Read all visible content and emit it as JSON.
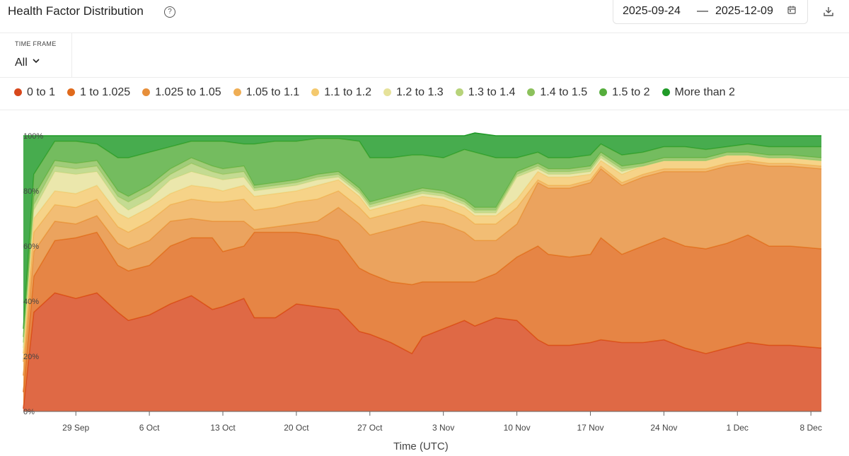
{
  "header": {
    "title": "Health Factor Distribution",
    "help_icon": "?",
    "date_start": "2025-09-24",
    "date_sep": "—",
    "date_end": "2025-12-09"
  },
  "time_frame": {
    "label": "TIME FRAME",
    "value": "All"
  },
  "colors": {
    "0 to 1": "#d8481c",
    "1 to 1.025": "#e06a1c",
    "1.025 to 1.05": "#e78f3a",
    "1.05 to 1.1": "#efae55",
    "1.1 to 1.2": "#f4c96e",
    "1.2 to 1.3": "#e6e29a",
    "1.3 to 1.4": "#b7d37a",
    "1.4 to 1.5": "#8cc15c",
    "1.5 to 2": "#55ad3c",
    "More than 2": "#1f9a27"
  },
  "chart_data": {
    "type": "area",
    "stacked": true,
    "x_is_date": true,
    "date_range": [
      "2025-09-24",
      "2025-12-09"
    ],
    "xlabel": "Time (UTC)",
    "ylabel": "",
    "ylim": [
      0,
      100
    ],
    "yticks": [
      "0%",
      "20%",
      "40%",
      "60%",
      "80%",
      "100%"
    ],
    "xticks": [
      {
        "date": "2025-09-29",
        "label": "29 Sep"
      },
      {
        "date": "2025-10-06",
        "label": "6 Oct"
      },
      {
        "date": "2025-10-13",
        "label": "13 Oct"
      },
      {
        "date": "2025-10-20",
        "label": "20 Oct"
      },
      {
        "date": "2025-10-27",
        "label": "27 Oct"
      },
      {
        "date": "2025-11-03",
        "label": "3 Nov"
      },
      {
        "date": "2025-11-10",
        "label": "10 Nov"
      },
      {
        "date": "2025-11-17",
        "label": "17 Nov"
      },
      {
        "date": "2025-11-24",
        "label": "24 Nov"
      },
      {
        "date": "2025-12-01",
        "label": "1 Dec"
      },
      {
        "date": "2025-12-08",
        "label": "8 Dec"
      }
    ],
    "x": [
      "2025-09-24",
      "2025-09-25",
      "2025-09-27",
      "2025-09-29",
      "2025-10-01",
      "2025-10-03",
      "2025-10-04",
      "2025-10-06",
      "2025-10-08",
      "2025-10-10",
      "2025-10-12",
      "2025-10-13",
      "2025-10-15",
      "2025-10-16",
      "2025-10-18",
      "2025-10-20",
      "2025-10-22",
      "2025-10-24",
      "2025-10-26",
      "2025-10-27",
      "2025-10-29",
      "2025-10-31",
      "2025-11-01",
      "2025-11-03",
      "2025-11-05",
      "2025-11-06",
      "2025-11-08",
      "2025-11-10",
      "2025-11-12",
      "2025-11-13",
      "2025-11-15",
      "2025-11-17",
      "2025-11-18",
      "2025-11-20",
      "2025-11-22",
      "2025-11-24",
      "2025-11-26",
      "2025-11-28",
      "2025-11-30",
      "2025-12-02",
      "2025-12-04",
      "2025-12-06",
      "2025-12-09"
    ],
    "series": [
      {
        "name": "0 to 1",
        "values": [
          1,
          36,
          43,
          41,
          43,
          36,
          33,
          35,
          39,
          42,
          37,
          38,
          41,
          34,
          34,
          39,
          38,
          37,
          29,
          28,
          25,
          21,
          27,
          30,
          33,
          31,
          34,
          33,
          26,
          24,
          24,
          25,
          26,
          25,
          25,
          26,
          23,
          21,
          23,
          25,
          24,
          24,
          23
        ]
      },
      {
        "name": "1 to 1.025",
        "values": [
          6,
          13,
          19,
          22,
          22,
          17,
          18,
          18,
          21,
          21,
          26,
          20,
          19,
          31,
          31,
          26,
          26,
          25,
          23,
          22,
          22,
          25,
          20,
          17,
          14,
          16,
          16,
          23,
          34,
          33,
          32,
          32,
          37,
          32,
          35,
          37,
          37,
          38,
          38,
          39,
          36,
          36,
          36
        ]
      },
      {
        "name": "1.025 to 1.05",
        "values": [
          6,
          9,
          7,
          5,
          6,
          8,
          8,
          9,
          9,
          7,
          6,
          11,
          9,
          1,
          2,
          3,
          5,
          12,
          16,
          14,
          19,
          22,
          22,
          21,
          18,
          15,
          12,
          12,
          23,
          24,
          25,
          26,
          25,
          25,
          25,
          24,
          27,
          28,
          28,
          26,
          29,
          29,
          29
        ]
      },
      {
        "name": "1.05 to 1.1",
        "values": [
          5,
          7,
          6,
          6,
          6,
          6,
          6,
          7,
          6,
          7,
          7,
          7,
          8,
          7,
          7,
          8,
          8,
          6,
          6,
          6,
          6,
          6,
          6,
          6,
          6,
          6,
          6,
          6,
          1,
          1,
          1,
          1,
          1,
          1,
          1,
          1,
          1,
          1,
          1,
          1,
          1,
          1,
          1
        ]
      },
      {
        "name": "1.1 to 1.2",
        "values": [
          3,
          5,
          5,
          5,
          5,
          5,
          5,
          5,
          4,
          5,
          5,
          4,
          5,
          5,
          5,
          4,
          5,
          4,
          4,
          3,
          3,
          3,
          3,
          3,
          3,
          3,
          3,
          3,
          3,
          3,
          3,
          2,
          2,
          3,
          3,
          3,
          3,
          3,
          3,
          2,
          2,
          2,
          2
        ]
      },
      {
        "name": "1.2 to 1.3",
        "values": [
          2,
          3,
          7,
          7,
          5,
          4,
          3,
          3,
          5,
          5,
          4,
          4,
          3,
          2,
          2,
          2,
          2,
          1,
          1,
          1,
          1,
          1,
          1,
          1,
          1,
          1,
          1,
          8,
          1,
          1,
          1,
          1,
          1,
          1,
          0,
          0,
          0,
          0,
          0,
          0,
          0,
          0,
          0
        ]
      },
      {
        "name": "1.3 to 1.4",
        "values": [
          2,
          2,
          2,
          2,
          2,
          2,
          3,
          3,
          2,
          3,
          2,
          2,
          2,
          1,
          1,
          1,
          1,
          1,
          1,
          1,
          1,
          1,
          1,
          1,
          1,
          1,
          1,
          1,
          1,
          1,
          1,
          1,
          1,
          1,
          0,
          0,
          0,
          0,
          0,
          0,
          0,
          0,
          0
        ]
      },
      {
        "name": "1.4 to 1.5",
        "values": [
          2,
          3,
          2,
          2,
          2,
          2,
          2,
          2,
          2,
          2,
          2,
          2,
          2,
          1,
          1,
          1,
          1,
          1,
          1,
          1,
          1,
          1,
          1,
          1,
          1,
          1,
          1,
          1,
          1,
          1,
          1,
          1,
          1,
          1,
          1,
          1,
          1,
          1,
          1,
          1,
          1,
          1,
          1
        ]
      },
      {
        "name": "1.5 to 2",
        "values": [
          3,
          8,
          7,
          8,
          6,
          12,
          14,
          12,
          8,
          6,
          9,
          10,
          8,
          15,
          15,
          14,
          13,
          12,
          17,
          16,
          14,
          13,
          12,
          12,
          18,
          20,
          18,
          5,
          4,
          4,
          4,
          4,
          3,
          4,
          4,
          4,
          4,
          3,
          2,
          3,
          3,
          3,
          4
        ]
      },
      {
        "name": "More than 2",
        "values": [
          70,
          14,
          2,
          2,
          3,
          8,
          8,
          6,
          4,
          2,
          2,
          2,
          3,
          3,
          2,
          2,
          1,
          1,
          2,
          8,
          8,
          7,
          7,
          8,
          5,
          7,
          8,
          8,
          6,
          8,
          8,
          7,
          3,
          7,
          6,
          4,
          4,
          5,
          4,
          3,
          4,
          4,
          4
        ]
      }
    ]
  }
}
